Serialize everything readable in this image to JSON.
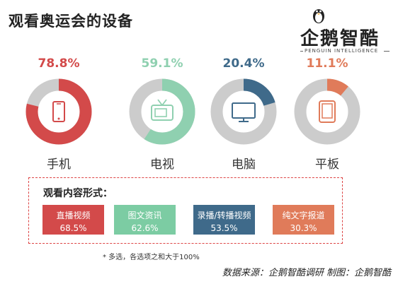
{
  "title": "观看奥运会的设备",
  "logo": {
    "brand": "企鹅智酷",
    "sub": "PENGUIN INTELLIGENCE"
  },
  "chart_data": [
    {
      "type": "pie",
      "title": "观看奥运会的设备",
      "categories": [
        "手机",
        "电视",
        "电脑",
        "平板"
      ],
      "values": [
        78.8,
        59.1,
        20.4,
        11.1
      ],
      "labels": [
        "78.8%",
        "59.1%",
        "20.4%",
        "11.1%"
      ],
      "colors": [
        "#d34a4a",
        "#8fd0b0",
        "#3f6a8a",
        "#e07b5a"
      ],
      "icons": [
        "phone-icon",
        "tv-icon",
        "monitor-icon",
        "tablet-icon"
      ],
      "track_color": "#cccccc"
    },
    {
      "type": "table",
      "title": "观看内容形式：",
      "categories": [
        "直播视频",
        "图文资讯",
        "录播/转播视频",
        "纯文字报道"
      ],
      "values": [
        68.5,
        62.6,
        53.5,
        30.3
      ],
      "labels": [
        "68.5%",
        "62.6%",
        "53.5%",
        "30.3%"
      ],
      "colors": [
        "#d34a4a",
        "#7ccca3",
        "#3f6a8a",
        "#e07b5a"
      ]
    }
  ],
  "note": "* 多选，各选项之和大于100%",
  "source": "数据来源：企鹅智酷调研  制图：企鹅智酷"
}
